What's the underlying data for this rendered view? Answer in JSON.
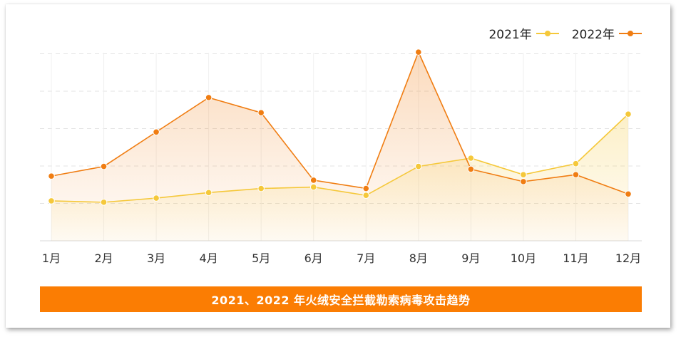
{
  "chart_data": {
    "type": "line",
    "categories": [
      "1月",
      "2月",
      "3月",
      "4月",
      "5月",
      "6月",
      "7月",
      "8月",
      "9月",
      "10月",
      "11月",
      "12月"
    ],
    "series": [
      {
        "name": "2021年",
        "color": "#f5c83a",
        "values": [
          29,
          28,
          31,
          35,
          38,
          39,
          33,
          54,
          60,
          48,
          56,
          92
        ]
      },
      {
        "name": "2022年",
        "color": "#f07d12",
        "values": [
          47,
          54,
          79,
          104,
          93,
          44,
          38,
          137,
          52,
          43,
          48,
          34
        ]
      }
    ],
    "ylim": [
      0,
      150
    ],
    "grid": true,
    "legend_position": "top-right",
    "caption": "2021、2022 年火绒安全拦截勒索病毒攻击趋势",
    "caption_color": "#fb7d03"
  }
}
